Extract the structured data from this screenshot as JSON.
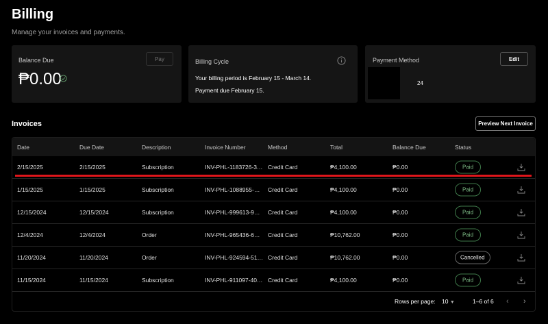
{
  "header": {
    "title": "Billing",
    "subtitle": "Manage your invoices and payments."
  },
  "balance": {
    "label": "Balance Due",
    "amount": "₱0.00",
    "pay_label": "Pay",
    "status_icon": "check-circle-icon"
  },
  "cycle": {
    "label": "Billing Cycle",
    "line1": "Your billing period is February 15 - March 14.",
    "line2": "Payment due February 15.",
    "info_icon": "info-icon"
  },
  "payment": {
    "label": "Payment Method",
    "edit_label": "Edit",
    "card_suffix": "24"
  },
  "invoices": {
    "title": "Invoices",
    "preview_label": "Preview Next Invoice",
    "columns": [
      "Date",
      "Due Date",
      "Description",
      "Invoice Number",
      "Method",
      "Total",
      "Balance Due",
      "Status"
    ],
    "rows": [
      {
        "date": "2/15/2025",
        "due": "2/15/2025",
        "desc": "Subscription",
        "number": "INV-PHL-1183726-3…",
        "method": "Credit Card",
        "total": "₱4,100.00",
        "balance": "₱0.00",
        "status": "Paid"
      },
      {
        "date": "1/15/2025",
        "due": "1/15/2025",
        "desc": "Subscription",
        "number": "INV-PHL-1088955-…",
        "method": "Credit Card",
        "total": "₱4,100.00",
        "balance": "₱0.00",
        "status": "Paid"
      },
      {
        "date": "12/15/2024",
        "due": "12/15/2024",
        "desc": "Subscription",
        "number": "INV-PHL-999613-9…",
        "method": "Credit Card",
        "total": "₱4,100.00",
        "balance": "₱0.00",
        "status": "Paid"
      },
      {
        "date": "12/4/2024",
        "due": "12/4/2024",
        "desc": "Order",
        "number": "INV-PHL-965436-6…",
        "method": "Credit Card",
        "total": "₱10,762.00",
        "balance": "₱0.00",
        "status": "Paid"
      },
      {
        "date": "11/20/2024",
        "due": "11/20/2024",
        "desc": "Order",
        "number": "INV-PHL-924594-51…",
        "method": "Credit Card",
        "total": "₱10,762.00",
        "balance": "₱0.00",
        "status": "Cancelled"
      },
      {
        "date": "11/15/2024",
        "due": "11/15/2024",
        "desc": "Subscription",
        "number": "INV-PHL-911097-40…",
        "method": "Credit Card",
        "total": "₱4,100.00",
        "balance": "₱0.00",
        "status": "Paid"
      }
    ],
    "pagination": {
      "rows_per_page_label": "Rows per page:",
      "rows_per_page": "10",
      "range": "1–6 of 6"
    }
  },
  "colors": {
    "background": "#000000",
    "card": "#151515",
    "paid": "#7fbf88",
    "highlight_line": "#e0161b"
  }
}
